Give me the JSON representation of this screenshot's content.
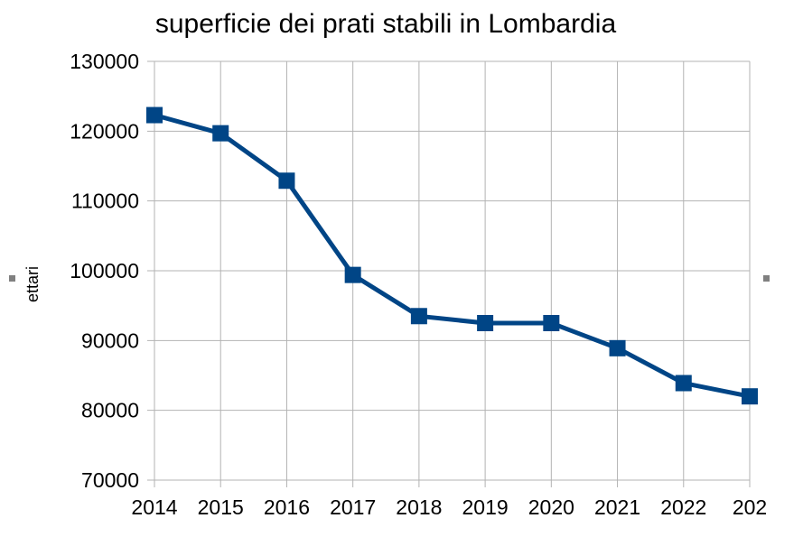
{
  "chart_data": {
    "type": "line",
    "title": "superficie dei prati stabili in Lombardia",
    "xlabel": "",
    "ylabel": "ettari",
    "categories": [
      "2014",
      "2015",
      "2016",
      "2017",
      "2018",
      "2019",
      "2020",
      "2021",
      "2022",
      "202"
    ],
    "series": [
      {
        "name": "superficie dei prati stabili",
        "values": [
          122300,
          119700,
          112900,
          99400,
          93500,
          92500,
          92500,
          88900,
          83900,
          82000
        ]
      }
    ],
    "ylim": [
      70000,
      130000
    ],
    "yticks": [
      "70000",
      "80000",
      "90000",
      "100000",
      "110000",
      "120000",
      "130000"
    ],
    "grid": true,
    "legend": "none",
    "colors": {
      "line": "#004586",
      "marker": "#004586",
      "grid": "#b3b3b3",
      "handle": "#808080"
    }
  }
}
